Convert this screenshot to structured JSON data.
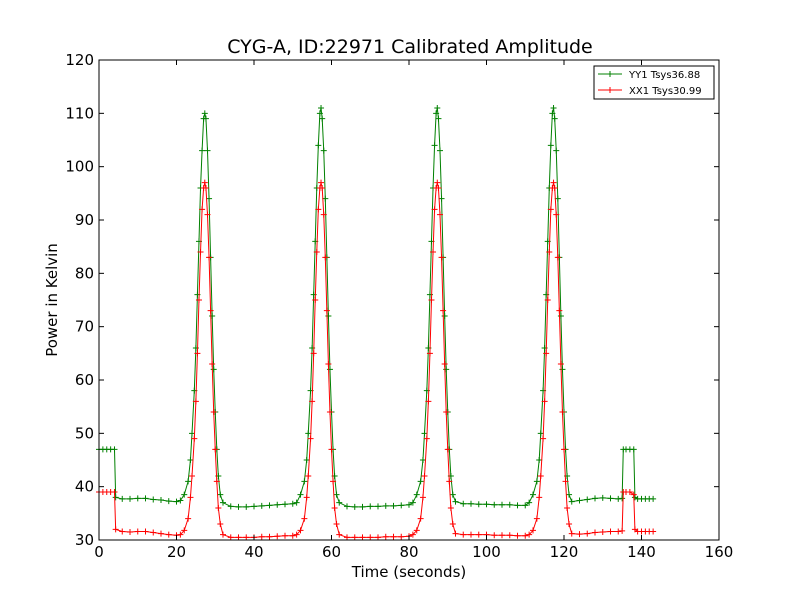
{
  "chart_data": {
    "type": "line",
    "title": "CYG-A, ID:22971 Calibrated Amplitude",
    "xlabel": "Time (seconds)",
    "ylabel": "Power in Kelvin",
    "xlim": [
      0,
      160
    ],
    "ylim": [
      30,
      120
    ],
    "xticks": [
      "0",
      "20",
      "40",
      "60",
      "80",
      "100",
      "120",
      "140",
      "160"
    ],
    "yticks": [
      "30",
      "40",
      "50",
      "60",
      "70",
      "80",
      "90",
      "100",
      "110",
      "120"
    ],
    "grid": false,
    "legend_position": "top-right",
    "marker": "plus",
    "series": [
      {
        "name": "YY1 Tsys36.88",
        "color": "#008000",
        "points": [
          [
            0,
            47
          ],
          [
            1,
            47
          ],
          [
            2,
            47
          ],
          [
            3,
            47
          ],
          [
            4,
            47
          ],
          [
            4.3,
            38
          ],
          [
            6,
            37.7
          ],
          [
            8,
            37.7
          ],
          [
            10,
            37.8
          ],
          [
            12,
            37.8
          ],
          [
            14,
            37.6
          ],
          [
            16,
            37.5
          ],
          [
            18,
            37.3
          ],
          [
            20,
            37.2
          ],
          [
            21,
            37.4
          ],
          [
            22,
            38.5
          ],
          [
            23,
            41
          ],
          [
            23.6,
            45
          ],
          [
            24,
            50
          ],
          [
            24.6,
            58
          ],
          [
            25,
            66
          ],
          [
            25.4,
            76
          ],
          [
            25.8,
            86
          ],
          [
            26.2,
            96
          ],
          [
            26.6,
            103
          ],
          [
            27,
            109
          ],
          [
            27.3,
            110
          ],
          [
            27.6,
            109
          ],
          [
            28,
            103
          ],
          [
            28.4,
            94
          ],
          [
            28.8,
            83
          ],
          [
            29.2,
            72
          ],
          [
            29.6,
            62
          ],
          [
            30,
            54
          ],
          [
            30.4,
            47
          ],
          [
            30.8,
            42
          ],
          [
            31.3,
            38.5
          ],
          [
            32,
            37
          ],
          [
            34,
            36.3
          ],
          [
            36,
            36.2
          ],
          [
            38,
            36.2
          ],
          [
            40,
            36.3
          ],
          [
            42,
            36.4
          ],
          [
            44,
            36.5
          ],
          [
            46,
            36.6
          ],
          [
            48,
            36.7
          ],
          [
            50,
            36.8
          ],
          [
            51,
            37
          ],
          [
            52,
            38.5
          ],
          [
            53,
            41
          ],
          [
            53.6,
            45
          ],
          [
            54,
            50
          ],
          [
            54.6,
            58
          ],
          [
            55,
            66
          ],
          [
            55.4,
            76
          ],
          [
            55.8,
            86
          ],
          [
            56.2,
            96
          ],
          [
            56.6,
            104
          ],
          [
            57,
            110
          ],
          [
            57.3,
            111
          ],
          [
            57.6,
            109
          ],
          [
            58,
            103
          ],
          [
            58.4,
            94
          ],
          [
            58.8,
            83
          ],
          [
            59.2,
            72
          ],
          [
            59.6,
            62
          ],
          [
            60,
            54
          ],
          [
            60.4,
            47
          ],
          [
            60.8,
            42
          ],
          [
            61.3,
            38.5
          ],
          [
            62,
            37
          ],
          [
            64,
            36.3
          ],
          [
            66,
            36.2
          ],
          [
            68,
            36.2
          ],
          [
            70,
            36.3
          ],
          [
            72,
            36.3
          ],
          [
            74,
            36.4
          ],
          [
            76,
            36.4
          ],
          [
            78,
            36.5
          ],
          [
            80,
            36.6
          ],
          [
            81,
            37
          ],
          [
            82,
            38.5
          ],
          [
            83,
            41
          ],
          [
            83.6,
            45
          ],
          [
            84,
            50
          ],
          [
            84.6,
            58
          ],
          [
            85,
            66
          ],
          [
            85.4,
            76
          ],
          [
            85.8,
            86
          ],
          [
            86.2,
            96
          ],
          [
            86.6,
            104
          ],
          [
            87,
            110
          ],
          [
            87.3,
            111
          ],
          [
            87.6,
            109
          ],
          [
            88,
            103
          ],
          [
            88.4,
            94
          ],
          [
            88.8,
            83
          ],
          [
            89.2,
            72
          ],
          [
            89.6,
            62
          ],
          [
            90,
            54
          ],
          [
            90.4,
            47
          ],
          [
            90.8,
            42
          ],
          [
            91.3,
            38.5
          ],
          [
            92,
            37.2
          ],
          [
            94,
            36.8
          ],
          [
            96,
            36.8
          ],
          [
            98,
            36.7
          ],
          [
            100,
            36.7
          ],
          [
            102,
            36.6
          ],
          [
            104,
            36.6
          ],
          [
            106,
            36.6
          ],
          [
            108,
            36.5
          ],
          [
            110,
            36.5
          ],
          [
            111,
            37
          ],
          [
            112,
            38.5
          ],
          [
            113,
            41
          ],
          [
            113.6,
            45
          ],
          [
            114,
            50
          ],
          [
            114.6,
            58
          ],
          [
            115,
            66
          ],
          [
            115.4,
            76
          ],
          [
            115.8,
            86
          ],
          [
            116.2,
            96
          ],
          [
            116.6,
            104
          ],
          [
            117,
            110
          ],
          [
            117.3,
            111
          ],
          [
            117.6,
            109
          ],
          [
            118,
            103
          ],
          [
            118.4,
            94
          ],
          [
            118.8,
            83
          ],
          [
            119.2,
            72
          ],
          [
            119.6,
            62
          ],
          [
            120,
            54
          ],
          [
            120.4,
            47
          ],
          [
            120.8,
            42
          ],
          [
            121.3,
            38.5
          ],
          [
            122,
            37.2
          ],
          [
            124,
            37.4
          ],
          [
            126,
            37.6
          ],
          [
            128,
            37.8
          ],
          [
            130,
            37.9
          ],
          [
            132,
            37.8
          ],
          [
            134,
            37.7
          ],
          [
            135,
            37.8
          ],
          [
            135.3,
            47
          ],
          [
            136,
            47
          ],
          [
            137,
            47
          ],
          [
            138,
            47
          ],
          [
            138.3,
            38
          ],
          [
            139,
            37.7
          ],
          [
            140,
            37.7
          ],
          [
            141,
            37.7
          ],
          [
            142,
            37.7
          ],
          [
            143,
            37.7
          ]
        ]
      },
      {
        "name": "XX1 Tsys30.99",
        "color": "#ff0000",
        "points": [
          [
            0,
            39
          ],
          [
            1,
            39
          ],
          [
            2,
            39
          ],
          [
            3,
            39
          ],
          [
            4,
            39
          ],
          [
            4.3,
            32
          ],
          [
            6,
            31.6
          ],
          [
            8,
            31.5
          ],
          [
            10,
            31.6
          ],
          [
            12,
            31.6
          ],
          [
            14,
            31.4
          ],
          [
            16,
            31.2
          ],
          [
            18,
            31
          ],
          [
            20,
            30.9
          ],
          [
            21,
            31
          ],
          [
            22,
            31.8
          ],
          [
            23,
            34
          ],
          [
            23.6,
            38
          ],
          [
            24,
            42
          ],
          [
            24.6,
            49
          ],
          [
            25,
            56
          ],
          [
            25.4,
            65
          ],
          [
            25.8,
            75
          ],
          [
            26.2,
            84
          ],
          [
            26.6,
            92
          ],
          [
            27,
            96
          ],
          [
            27.3,
            97
          ],
          [
            27.6,
            96
          ],
          [
            28,
            91
          ],
          [
            28.4,
            83
          ],
          [
            28.8,
            73
          ],
          [
            29.2,
            63
          ],
          [
            29.6,
            54
          ],
          [
            30,
            47
          ],
          [
            30.4,
            41
          ],
          [
            30.8,
            36
          ],
          [
            31.3,
            33
          ],
          [
            32,
            31
          ],
          [
            34,
            30.5
          ],
          [
            36,
            30.5
          ],
          [
            38,
            30.5
          ],
          [
            40,
            30.5
          ],
          [
            42,
            30.6
          ],
          [
            44,
            30.6
          ],
          [
            46,
            30.7
          ],
          [
            48,
            30.8
          ],
          [
            50,
            30.8
          ],
          [
            51,
            31
          ],
          [
            52,
            31.8
          ],
          [
            53,
            34
          ],
          [
            53.6,
            38
          ],
          [
            54,
            42
          ],
          [
            54.6,
            49
          ],
          [
            55,
            56
          ],
          [
            55.4,
            65
          ],
          [
            55.8,
            75
          ],
          [
            56.2,
            84
          ],
          [
            56.6,
            92
          ],
          [
            57,
            96
          ],
          [
            57.3,
            97
          ],
          [
            57.6,
            96
          ],
          [
            58,
            91
          ],
          [
            58.4,
            83
          ],
          [
            58.8,
            73
          ],
          [
            59.2,
            63
          ],
          [
            59.6,
            54
          ],
          [
            60,
            47
          ],
          [
            60.4,
            41
          ],
          [
            60.8,
            36
          ],
          [
            61.3,
            33
          ],
          [
            62,
            31
          ],
          [
            64,
            30.5
          ],
          [
            66,
            30.5
          ],
          [
            68,
            30.5
          ],
          [
            70,
            30.5
          ],
          [
            72,
            30.5
          ],
          [
            74,
            30.6
          ],
          [
            76,
            30.6
          ],
          [
            78,
            30.6
          ],
          [
            80,
            30.7
          ],
          [
            81,
            31
          ],
          [
            82,
            31.8
          ],
          [
            83,
            34
          ],
          [
            83.6,
            38
          ],
          [
            84,
            42
          ],
          [
            84.6,
            49
          ],
          [
            85,
            56
          ],
          [
            85.4,
            65
          ],
          [
            85.8,
            75
          ],
          [
            86.2,
            84
          ],
          [
            86.6,
            92
          ],
          [
            87,
            96
          ],
          [
            87.3,
            97
          ],
          [
            87.6,
            96
          ],
          [
            88,
            91
          ],
          [
            88.4,
            83
          ],
          [
            88.8,
            73
          ],
          [
            89.2,
            63
          ],
          [
            89.6,
            54
          ],
          [
            90,
            47
          ],
          [
            90.4,
            41
          ],
          [
            90.8,
            36
          ],
          [
            91.3,
            33
          ],
          [
            92,
            31.2
          ],
          [
            94,
            31
          ],
          [
            96,
            31
          ],
          [
            98,
            31
          ],
          [
            100,
            31
          ],
          [
            102,
            30.9
          ],
          [
            104,
            30.9
          ],
          [
            106,
            30.9
          ],
          [
            108,
            30.8
          ],
          [
            110,
            30.8
          ],
          [
            111,
            31
          ],
          [
            112,
            31.8
          ],
          [
            113,
            34
          ],
          [
            113.6,
            38
          ],
          [
            114,
            42
          ],
          [
            114.6,
            49
          ],
          [
            115,
            56
          ],
          [
            115.4,
            65
          ],
          [
            115.8,
            75
          ],
          [
            116.2,
            84
          ],
          [
            116.6,
            92
          ],
          [
            117,
            96
          ],
          [
            117.3,
            97
          ],
          [
            117.6,
            96
          ],
          [
            118,
            91
          ],
          [
            118.4,
            83
          ],
          [
            118.8,
            73
          ],
          [
            119.2,
            63
          ],
          [
            119.6,
            54
          ],
          [
            120,
            47
          ],
          [
            120.4,
            41
          ],
          [
            120.8,
            36
          ],
          [
            121.3,
            33
          ],
          [
            122,
            31.2
          ],
          [
            124,
            31.1
          ],
          [
            126,
            31.2
          ],
          [
            128,
            31.4
          ],
          [
            130,
            31.5
          ],
          [
            132,
            31.6
          ],
          [
            134,
            31.6
          ],
          [
            135,
            31.7
          ],
          [
            135.3,
            39
          ],
          [
            136,
            39
          ],
          [
            137,
            39
          ],
          [
            138,
            38.5
          ],
          [
            138.3,
            32
          ],
          [
            139,
            31.6
          ],
          [
            140,
            31.6
          ],
          [
            141,
            31.6
          ],
          [
            142,
            31.6
          ],
          [
            143,
            31.6
          ]
        ]
      }
    ]
  }
}
